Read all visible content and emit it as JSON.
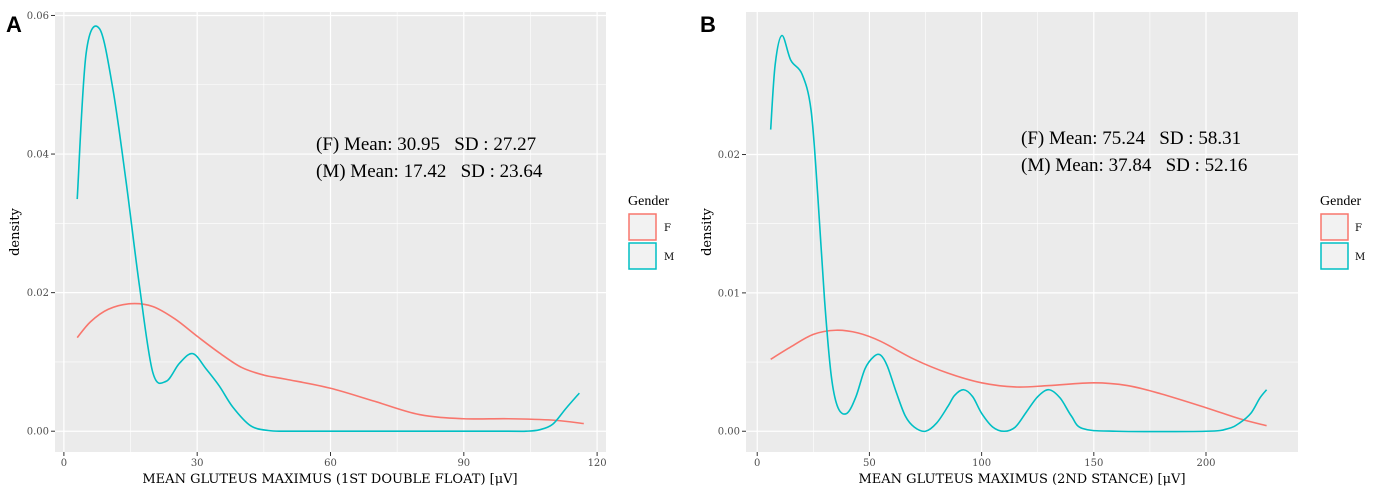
{
  "chart_data": [
    {
      "type": "line",
      "panel_label": "A",
      "xlabel": "MEAN GLUTEUS MAXIMUS (1ST DOUBLE FLOAT) [μV]",
      "ylabel": "density",
      "xlim": [
        -2,
        122
      ],
      "ylim": [
        -0.003,
        0.0605
      ],
      "xticks": [
        0,
        30,
        60,
        90,
        120
      ],
      "xtick_labels": [
        "0",
        "30",
        "60",
        "90",
        "120"
      ],
      "yticks": [
        0,
        0.02,
        0.04,
        0.06
      ],
      "ytick_labels": [
        "0.00",
        "0.02",
        "0.04",
        "0.06"
      ],
      "annotations": [
        "(F) Mean: 30.95   SD : 27.27",
        "(M) Mean: 17.42   SD : 23.64"
      ],
      "legend": {
        "title": "Gender",
        "entries": [
          "F",
          "M"
        ],
        "position": "right"
      },
      "series": [
        {
          "name": "F",
          "color": "#F8766D",
          "x": [
            3,
            6,
            10,
            15,
            20,
            25,
            30,
            35,
            40,
            45,
            50,
            60,
            70,
            80,
            90,
            100,
            110,
            117
          ],
          "y": [
            0.0135,
            0.0158,
            0.0176,
            0.0184,
            0.018,
            0.0162,
            0.0137,
            0.0113,
            0.0092,
            0.0081,
            0.0075,
            0.0062,
            0.0043,
            0.0024,
            0.0018,
            0.0018,
            0.0016,
            0.0011
          ]
        },
        {
          "name": "M",
          "color": "#00BFC4",
          "x": [
            3,
            5,
            8,
            11,
            14,
            17,
            20,
            23,
            26,
            29,
            32,
            35,
            38,
            42,
            46,
            50,
            60,
            80,
            100,
            104,
            107,
            110,
            113,
            116
          ],
          "y": [
            0.0335,
            0.0545,
            0.0581,
            0.0495,
            0.036,
            0.021,
            0.0085,
            0.0072,
            0.0098,
            0.0112,
            0.009,
            0.0065,
            0.0035,
            0.0008,
            0.0001,
            0.0,
            0.0,
            0.0,
            0.0,
            0.0,
            0.0002,
            0.001,
            0.0033,
            0.0055
          ]
        }
      ]
    },
    {
      "type": "line",
      "panel_label": "B",
      "xlabel": "MEAN GLUTEUS MAXIMUS (2ND STANCE) [μV]",
      "ylabel": "density",
      "xlim": [
        -5,
        241
      ],
      "ylim": [
        -0.0015,
        0.0303
      ],
      "xticks": [
        0,
        50,
        100,
        150,
        200
      ],
      "xtick_labels": [
        "0",
        "50",
        "100",
        "150",
        "200"
      ],
      "yticks": [
        0,
        0.01,
        0.02
      ],
      "ytick_labels": [
        "0.00",
        "0.01",
        "0.02"
      ],
      "annotations": [
        "(F) Mean: 75.24   SD : 58.31",
        "(M) Mean: 37.84   SD : 52.16"
      ],
      "legend": {
        "title": "Gender",
        "entries": [
          "F",
          "M"
        ],
        "position": "right"
      },
      "series": [
        {
          "name": "F",
          "color": "#F8766D",
          "x": [
            6,
            15,
            25,
            35,
            45,
            55,
            70,
            85,
            100,
            115,
            130,
            150,
            165,
            180,
            200,
            215,
            227
          ],
          "y": [
            0.0052,
            0.0061,
            0.007,
            0.0073,
            0.0071,
            0.0065,
            0.0052,
            0.0042,
            0.0035,
            0.0032,
            0.0033,
            0.0035,
            0.0033,
            0.0027,
            0.0017,
            0.0009,
            0.0004
          ]
        },
        {
          "name": "M",
          "color": "#00BFC4",
          "x": [
            6,
            8,
            11,
            15,
            20,
            24,
            27,
            30,
            33,
            36,
            40,
            44,
            48,
            52,
            55,
            58,
            62,
            66,
            70,
            75,
            80,
            85,
            88,
            92,
            96,
            100,
            105,
            110,
            115,
            120,
            125,
            130,
            135,
            140,
            145,
            160,
            200,
            210,
            215,
            220,
            224,
            227
          ],
          "y": [
            0.0218,
            0.0265,
            0.0286,
            0.0268,
            0.0258,
            0.0232,
            0.017,
            0.0095,
            0.004,
            0.0017,
            0.0013,
            0.0025,
            0.0045,
            0.0054,
            0.0055,
            0.0047,
            0.0028,
            0.0011,
            0.0003,
            0.0,
            0.0006,
            0.0018,
            0.0026,
            0.003,
            0.0025,
            0.0013,
            0.0003,
            0.0,
            0.0003,
            0.0014,
            0.0025,
            0.003,
            0.0024,
            0.0011,
            0.0002,
            0.0,
            0.0,
            0.0002,
            0.0006,
            0.0013,
            0.0024,
            0.003
          ]
        }
      ]
    }
  ]
}
